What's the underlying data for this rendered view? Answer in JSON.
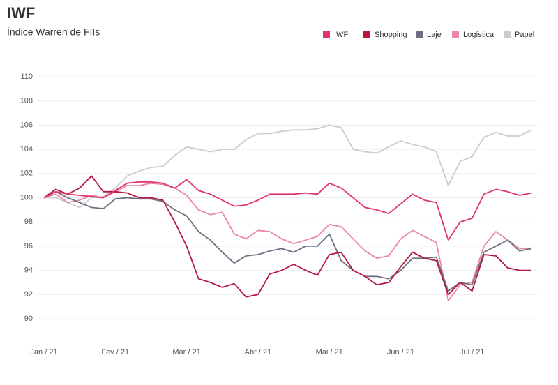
{
  "chart_data": {
    "type": "line",
    "title": "IWF",
    "subtitle": "Índice Warren de FIIs",
    "categories": [
      "Jan / 21",
      null,
      null,
      null,
      null,
      null,
      "Fev / 21",
      null,
      null,
      null,
      null,
      null,
      "Mar / 21",
      null,
      null,
      null,
      null,
      null,
      "Abr / 21",
      null,
      null,
      null,
      null,
      null,
      "Mai / 21",
      null,
      null,
      null,
      null,
      null,
      "Jun / 21",
      null,
      null,
      null,
      null,
      null,
      "Jul / 21",
      null,
      null,
      null,
      null,
      null
    ],
    "ylim": [
      90,
      110
    ],
    "yticks": [
      90,
      92,
      94,
      96,
      98,
      100,
      102,
      104,
      106,
      108,
      110
    ],
    "grid": true,
    "legend": "top-right",
    "series": [
      {
        "name": "IWF",
        "color": "#e0336b",
        "values": [
          100,
          100.5,
          100.3,
          100.2,
          100.1,
          100.0,
          100.6,
          101.2,
          101.3,
          101.3,
          101.2,
          100.8,
          101.5,
          100.6,
          100.3,
          99.8,
          99.3,
          99.4,
          99.8,
          100.3,
          100.3,
          100.3,
          100.4,
          100.3,
          101.2,
          100.8,
          100.0,
          99.2,
          99.0,
          98.7,
          99.5,
          100.3,
          99.8,
          99.6,
          96.5,
          98.0,
          98.3,
          100.3,
          100.7,
          100.5,
          100.2,
          100.4
        ]
      },
      {
        "name": "Shopping",
        "color": "#b5173f",
        "values": [
          100,
          100.7,
          100.3,
          100.8,
          101.8,
          100.5,
          100.5,
          100.4,
          100.0,
          100.0,
          99.8,
          98.0,
          96.0,
          93.3,
          93.0,
          92.6,
          92.9,
          91.8,
          92.0,
          93.7,
          94.0,
          94.5,
          94.0,
          93.6,
          95.3,
          95.5,
          94.0,
          93.5,
          92.8,
          93.0,
          94.3,
          95.5,
          95.0,
          94.8,
          92.0,
          93.0,
          92.3,
          95.3,
          95.2,
          94.2,
          94.0,
          94.0
        ]
      },
      {
        "name": "Laje",
        "color": "#6e6e85",
        "values": [
          100,
          100.5,
          100.0,
          99.6,
          99.2,
          99.1,
          99.9,
          100.0,
          99.9,
          99.9,
          99.7,
          99.0,
          98.5,
          97.2,
          96.5,
          95.5,
          94.6,
          95.2,
          95.3,
          95.6,
          95.8,
          95.5,
          96.0,
          96.0,
          97.0,
          94.8,
          94.0,
          93.5,
          93.5,
          93.3,
          94.0,
          95.0,
          95.0,
          95.1,
          92.3,
          93.0,
          92.8,
          95.5,
          96.0,
          96.5,
          95.6,
          95.8
        ]
      },
      {
        "name": "Logística",
        "color": "#ec86a3",
        "values": [
          100,
          100.3,
          99.6,
          99.8,
          100.2,
          100.0,
          100.5,
          101.0,
          101.0,
          101.2,
          101.1,
          100.8,
          100.2,
          99.0,
          98.6,
          98.8,
          97.0,
          96.6,
          97.3,
          97.2,
          96.6,
          96.2,
          96.5,
          96.8,
          97.8,
          97.6,
          96.6,
          95.6,
          95.0,
          95.2,
          96.6,
          97.3,
          96.8,
          96.3,
          91.5,
          92.8,
          93.0,
          96.0,
          97.2,
          96.5,
          95.8,
          95.8
        ]
      },
      {
        "name": "Papel",
        "color": "#cbcbd0",
        "values": [
          100,
          100.0,
          99.6,
          99.2,
          100.0,
          100.1,
          100.8,
          101.8,
          102.2,
          102.5,
          102.6,
          103.5,
          104.2,
          104.0,
          103.8,
          104.0,
          104.0,
          104.8,
          105.3,
          105.3,
          105.5,
          105.6,
          105.6,
          105.7,
          106.0,
          105.8,
          104.0,
          103.8,
          103.7,
          104.2,
          104.7,
          104.4,
          104.2,
          103.8,
          101.0,
          103.0,
          103.4,
          105.0,
          105.4,
          105.1,
          105.1,
          105.6
        ]
      }
    ]
  }
}
